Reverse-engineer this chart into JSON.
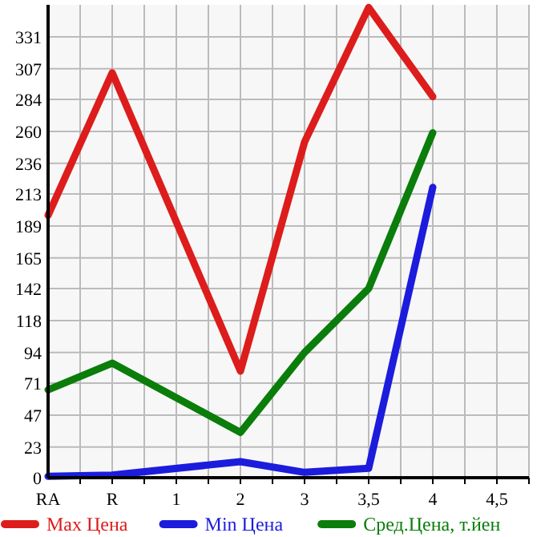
{
  "chart_data": {
    "type": "line",
    "categories": [
      "RA",
      "R",
      "1",
      "2",
      "3",
      "3,5",
      "4",
      "4,5"
    ],
    "series": [
      {
        "name": "Max Цена",
        "color": "#dd1c1c",
        "values": [
          197,
          304,
          null,
          80,
          252,
          353,
          286,
          null
        ]
      },
      {
        "name": "Min Цена",
        "color": "#1c1cdd",
        "values": [
          1,
          2,
          null,
          12,
          4,
          7,
          218,
          null
        ]
      },
      {
        "name": "Сред.Цена, т.йен",
        "color": "#0a7d0a",
        "values": [
          66,
          86,
          null,
          34,
          94,
          142,
          259,
          null
        ]
      }
    ],
    "ylim": [
      0,
      355
    ],
    "yticks": [
      0,
      23,
      47,
      71,
      94,
      118,
      142,
      165,
      189,
      213,
      236,
      260,
      284,
      307,
      331
    ],
    "grid": true,
    "legend": "bottom",
    "marker": "none",
    "line_style": "solid"
  }
}
